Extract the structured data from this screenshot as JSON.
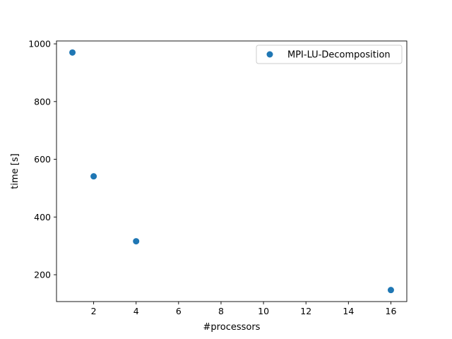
{
  "chart_data": {
    "type": "scatter",
    "title": "",
    "xlabel": "#processors",
    "ylabel": "time [s]",
    "xlim": [
      0.25,
      16.75
    ],
    "ylim": [
      107,
      1010
    ],
    "xticks": [
      2,
      4,
      6,
      8,
      10,
      12,
      14,
      16
    ],
    "yticks": [
      200,
      400,
      600,
      800,
      1000
    ],
    "grid": false,
    "legend_position": "top-right",
    "series": [
      {
        "name": "MPI-LU-Decomposition",
        "color": "#1f77b4",
        "marker": "circle",
        "x": [
          1,
          2,
          4,
          16
        ],
        "y": [
          970,
          541,
          316,
          147
        ]
      }
    ]
  }
}
